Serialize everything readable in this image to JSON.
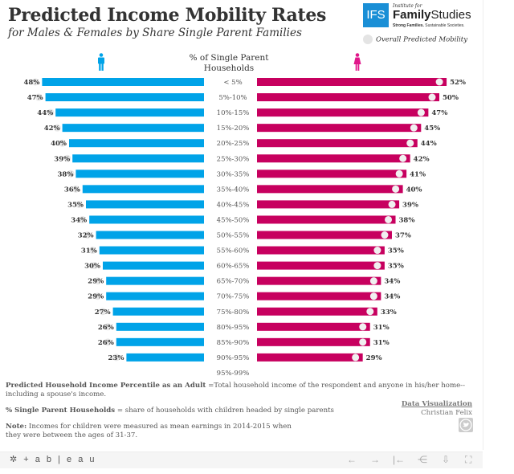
{
  "header": {
    "title": "Predicted Income Mobility Rates",
    "subtitle": "for Males & Females by Share Single Parent Families"
  },
  "logo": {
    "box_text": "IFS",
    "institute": "Institute for",
    "name_bold": "Family",
    "name_rest": "Studies",
    "tagline_bold": "Strong Families.",
    "tagline_rest": "Sustainable Societies."
  },
  "legend": {
    "overall_label": "Overall Predicted Mobility",
    "icon": "circle-dot-icon"
  },
  "icons": {
    "male": "male-person-icon",
    "female": "female-person-icon",
    "twitter": "twitter-bird-icon"
  },
  "colors": {
    "male": "#00a3e8",
    "female": "#c7005f",
    "overall_dot": "#e8e8e8"
  },
  "chart_data": {
    "type": "bar",
    "title": "Predicted Income Mobility Rates",
    "subtitle": "for Males & Females by Share Single Parent Families",
    "category_header": "% of Single Parent Households",
    "categories": [
      "< 5%",
      "5%-10%",
      "10%-15%",
      "15%-20%",
      "20%-25%",
      "25%-30%",
      "30%-35%",
      "35%-40%",
      "40%-45%",
      "45%-50%",
      "50%-55%",
      "55%-60%",
      "60%-65%",
      "65%-70%",
      "70%-75%",
      "75%-80%",
      "80%-95%",
      "85%-90%",
      "90%-95%",
      "95%-99%"
    ],
    "series": [
      {
        "name": "Males",
        "direction": "left",
        "values": [
          48,
          47,
          44,
          42,
          40,
          39,
          38,
          36,
          35,
          34,
          32,
          31,
          30,
          29,
          29,
          27,
          26,
          26,
          23,
          null
        ]
      },
      {
        "name": "Females",
        "direction": "right",
        "values": [
          52,
          50,
          47,
          45,
          44,
          42,
          41,
          40,
          39,
          38,
          37,
          35,
          35,
          34,
          34,
          33,
          31,
          31,
          29,
          null
        ]
      },
      {
        "name": "Overall Predicted Mobility",
        "type": "dot",
        "values": [
          50,
          49,
          45.5,
          43.5,
          42,
          40.5,
          39.5,
          38,
          37,
          36,
          34.5,
          33,
          32.5,
          31.5,
          31.5,
          30,
          28.5,
          28.5,
          26,
          null
        ]
      }
    ],
    "value_format": "{v}%",
    "xlim": [
      0,
      55
    ],
    "legend": "top-right",
    "grid": false
  },
  "notes": {
    "n1_bold": "Predicted Household Income Percentile as an Adult",
    "n1_text": " =Total household income of the respondent and anyone in his/her home-- including a spouse's income.",
    "n2_bold": "% Single Parent Households",
    "n2_text": " = share of households with children headed by single parents",
    "n3_bold": "Note:",
    "n3_text": " Incomes for children were measured as mean earnings in 2014-2015 when they were between the ages of 31-37."
  },
  "credit": {
    "link": "Data Visualization",
    "author": "Christian Felix"
  },
  "toolbar": {
    "brand": "+ a b | e a u",
    "buttons": [
      {
        "name": "undo-button",
        "icon": "←"
      },
      {
        "name": "redo-button",
        "icon": "→"
      },
      {
        "name": "revert-button",
        "icon": "|←"
      },
      {
        "name": "share-button",
        "icon": "⋲"
      },
      {
        "name": "download-button",
        "icon": "⇩"
      },
      {
        "name": "fullscreen-button",
        "icon": "⛶"
      }
    ]
  }
}
